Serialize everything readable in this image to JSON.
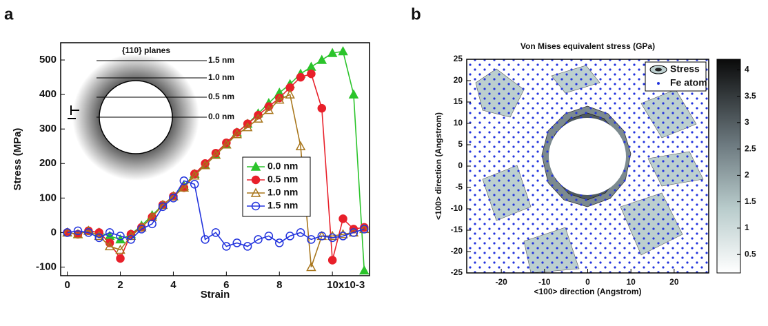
{
  "chart_data": [
    {
      "type": "line",
      "panel_label": "a",
      "xlabel": "Strain",
      "ylabel": "Stress (MPa)",
      "annotations": [
        "{110} planes",
        "1.5 nm",
        "1.0 nm",
        "0.5 nm",
        "0.0 nm"
      ],
      "x": [
        0,
        0.4,
        0.8,
        1.2,
        1.6,
        2.0,
        2.4,
        2.8,
        3.2,
        3.6,
        4.0,
        4.4,
        4.8,
        5.2,
        5.6,
        6.0,
        6.4,
        6.8,
        7.2,
        7.6,
        8.0,
        8.4,
        8.8,
        9.2,
        9.6,
        10.0,
        10.4,
        10.8,
        11.2
      ],
      "xlim": [
        -0.25,
        11.4
      ],
      "xticks": [
        0,
        2,
        4,
        6,
        8,
        {
          "value": 10,
          "label": "10x10-3"
        }
      ],
      "ylim": [
        -125,
        550
      ],
      "yticks": [
        -100,
        0,
        100,
        200,
        300,
        400,
        500
      ],
      "series": [
        {
          "name": "0.0 nm",
          "color": "#2bc42b",
          "marker": "triangle",
          "filled": true,
          "values": [
            0,
            -5,
            5,
            0,
            -10,
            -20,
            -5,
            20,
            50,
            80,
            105,
            135,
            170,
            195,
            225,
            255,
            290,
            315,
            345,
            375,
            405,
            430,
            460,
            480,
            500,
            520,
            525,
            400,
            -110
          ]
        },
        {
          "name": "0.5 nm",
          "color": "#e8202a",
          "marker": "circle",
          "filled": true,
          "values": [
            0,
            -5,
            5,
            0,
            -30,
            -75,
            -5,
            15,
            45,
            80,
            105,
            130,
            170,
            200,
            230,
            260,
            290,
            315,
            340,
            365,
            390,
            420,
            450,
            460,
            360,
            -80,
            40,
            10,
            15
          ]
        },
        {
          "name": "1.0 nm",
          "color": "#a8761c",
          "marker": "triangle",
          "filled": false,
          "values": [
            0,
            -5,
            5,
            -10,
            -40,
            -50,
            -10,
            15,
            45,
            80,
            105,
            130,
            165,
            195,
            225,
            255,
            285,
            305,
            330,
            355,
            385,
            400,
            250,
            -100,
            -10,
            -10,
            -5,
            0,
            10
          ]
        },
        {
          "name": "1.5 nm",
          "color": "#2233dd",
          "marker": "circle",
          "filled": false,
          "values": [
            0,
            5,
            0,
            -15,
            0,
            -10,
            -20,
            10,
            25,
            75,
            100,
            150,
            140,
            -20,
            0,
            -40,
            -30,
            -40,
            -20,
            -10,
            -30,
            -10,
            0,
            -20,
            -10,
            -15,
            -10,
            0,
            10
          ]
        }
      ]
    },
    {
      "type": "contour",
      "panel_label": "b",
      "title": "Von Mises equivalent stress (GPa)",
      "xlabel": "<100> direction (Angstrom)",
      "ylabel": "<100> direction (Angstrom)",
      "xlim": [
        -28,
        28
      ],
      "xticks": [
        -20,
        -10,
        0,
        10,
        20
      ],
      "ylim": [
        -25,
        25
      ],
      "yticks": [
        -25,
        -20,
        -15,
        -10,
        -5,
        0,
        5,
        10,
        15,
        20,
        25
      ],
      "clim": [
        0.15,
        4.2
      ],
      "cticks": [
        0.5,
        1,
        1.5,
        2,
        2.5,
        3,
        3.5,
        4
      ],
      "legend": [
        "Stress",
        "Fe atom"
      ],
      "atom_color": "#2233dd"
    }
  ]
}
